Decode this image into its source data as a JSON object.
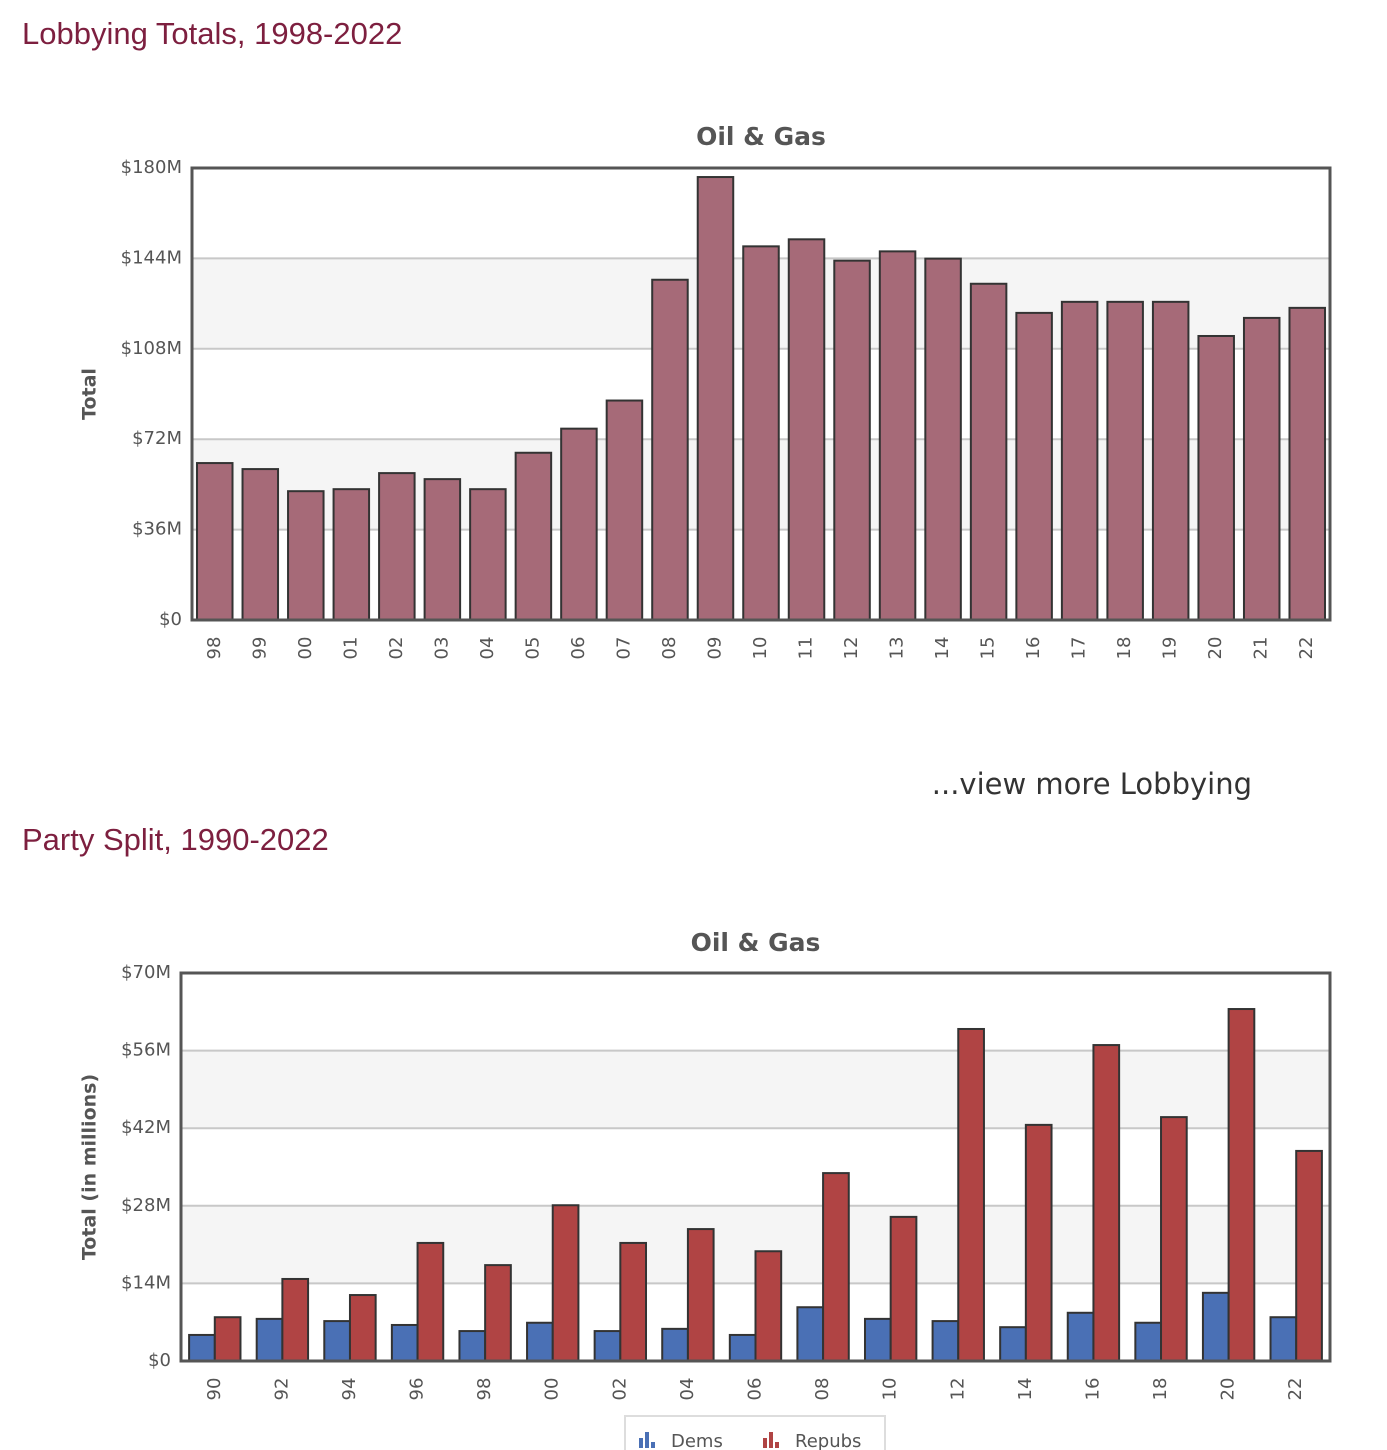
{
  "headings": [
    "Lobbying Totals, 1998-2022",
    "Party Split, 1990-2022"
  ],
  "link": "...view more Lobbying",
  "chart_data": [
    {
      "type": "bar",
      "title": "Oil & Gas",
      "y_label": "Total",
      "categories": [
        "98",
        "99",
        "00",
        "01",
        "02",
        "03",
        "04",
        "05",
        "06",
        "07",
        "08",
        "09",
        "10",
        "11",
        "12",
        "13",
        "14",
        "15",
        "16",
        "17",
        "18",
        "19",
        "20",
        "21",
        "22"
      ],
      "values": [
        62.5,
        60.1,
        51.3,
        52.1,
        58.5,
        56.1,
        52.1,
        66.6,
        76.2,
        87.4,
        135.5,
        176.4,
        148.8,
        151.6,
        143.1,
        146.8,
        143.9,
        133.9,
        122.3,
        126.7,
        126.7,
        126.7,
        113.1,
        120.3,
        124.3
      ],
      "color": "#a66a78",
      "ylim": [
        0,
        180
      ],
      "yticks": [
        {
          "value": 0,
          "label": "$0"
        },
        {
          "value": 36,
          "label": "$36M"
        },
        {
          "value": 72,
          "label": "$72M"
        },
        {
          "value": 108,
          "label": "$108M"
        },
        {
          "value": 144,
          "label": "$144M"
        },
        {
          "value": 180,
          "label": "$180M"
        }
      ],
      "grid": true
    },
    {
      "type": "grouped_bar",
      "title": "Oil & Gas",
      "y_label": "Total (in millions)",
      "categories": [
        "90",
        "92",
        "94",
        "96",
        "98",
        "00",
        "02",
        "04",
        "06",
        "08",
        "10",
        "12",
        "14",
        "16",
        "18",
        "20",
        "22"
      ],
      "series": [
        {
          "name": "Dems",
          "color": "#4a70b5",
          "values": [
            4.7,
            7.6,
            7.2,
            6.5,
            5.4,
            6.9,
            5.4,
            5.8,
            4.7,
            9.7,
            7.6,
            7.2,
            6.1,
            8.7,
            6.9,
            12.3,
            7.9
          ]
        },
        {
          "name": "Repubs",
          "color": "#b04444",
          "values": [
            7.9,
            14.8,
            11.9,
            21.3,
            17.3,
            28.1,
            21.3,
            23.8,
            19.8,
            33.9,
            26.0,
            59.9,
            42.6,
            57.0,
            44.0,
            63.5,
            37.9
          ]
        }
      ],
      "ylim": [
        0,
        70
      ],
      "yticks": [
        {
          "value": 0,
          "label": "$0"
        },
        {
          "value": 14,
          "label": "$14M"
        },
        {
          "value": 28,
          "label": "$28M"
        },
        {
          "value": 42,
          "label": "$42M"
        },
        {
          "value": 56,
          "label": "$56M"
        },
        {
          "value": 70,
          "label": "$70M"
        }
      ],
      "grid": true,
      "legend": "bottom"
    }
  ]
}
